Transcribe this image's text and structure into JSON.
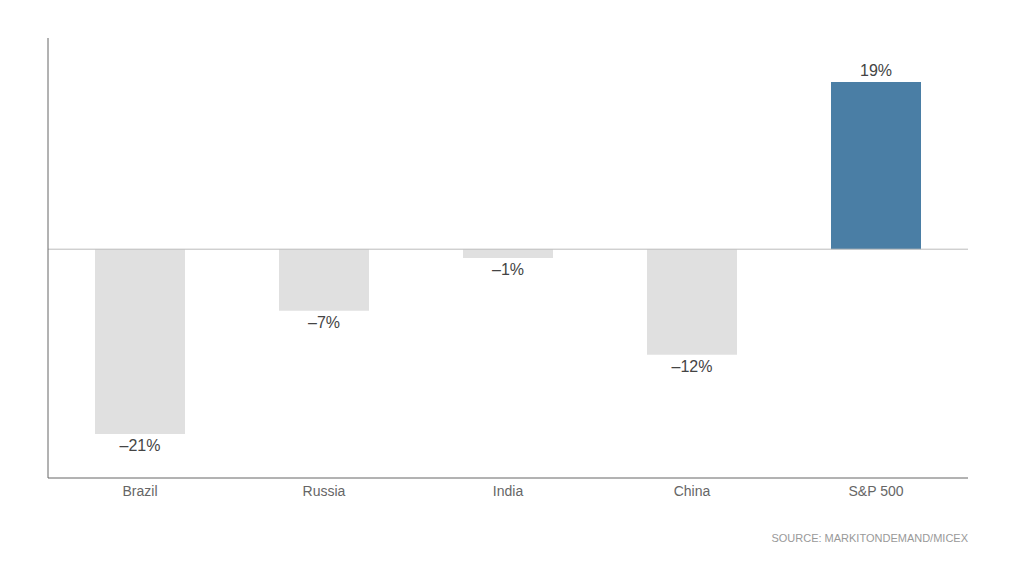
{
  "chart_data": {
    "type": "bar",
    "categories": [
      "Brazil",
      "Russia",
      "India",
      "China",
      "S&P 500"
    ],
    "values": [
      -21,
      -7,
      -1,
      -12,
      19
    ],
    "value_labels": [
      "–21%",
      "–7%",
      "–1%",
      "–12%",
      "19%"
    ],
    "colors": [
      "#e0e0e0",
      "#e0e0e0",
      "#e0e0e0",
      "#e0e0e0",
      "#4a7ea5"
    ],
    "ylim": [
      -26,
      24
    ],
    "data_labels": true,
    "tick_labels": "x",
    "grid": false,
    "annotations": [
      "SOURCE: MARKITONDEMAND/MICEX"
    ]
  }
}
